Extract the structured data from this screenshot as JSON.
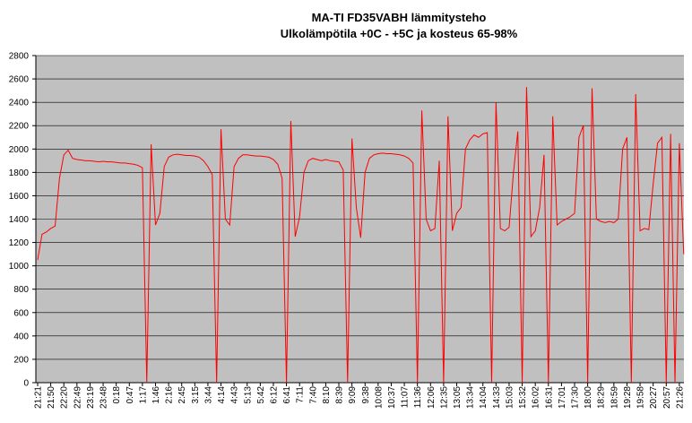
{
  "chart_data": {
    "type": "line",
    "title": "MA-TI FD35VABH lämmitysteho",
    "subtitle": "Ulkolämpötila  +0C - +5C ja kosteus 65-98%",
    "categories": [
      "21:21",
      null,
      null,
      "21:50",
      null,
      null,
      "22:20",
      null,
      null,
      "22:49",
      null,
      null,
      "23:19",
      null,
      null,
      "23:48",
      null,
      null,
      "0:18",
      null,
      null,
      "0:47",
      null,
      null,
      "1:17",
      null,
      null,
      "1:46",
      null,
      null,
      "2:16",
      null,
      null,
      "2:45",
      null,
      null,
      "3:15",
      null,
      null,
      "3:44",
      null,
      null,
      "4:14",
      null,
      null,
      "4:43",
      null,
      null,
      "5:13",
      null,
      null,
      "5:42",
      null,
      null,
      "6:12",
      null,
      null,
      "6:41",
      null,
      null,
      "7:11",
      null,
      null,
      "7:40",
      null,
      null,
      "8:10",
      null,
      null,
      "8:39",
      null,
      null,
      "9:09",
      null,
      null,
      "9:38",
      null,
      null,
      "10:08",
      null,
      null,
      "10:37",
      null,
      null,
      "11:07",
      null,
      null,
      "11:36",
      null,
      null,
      "12:06",
      null,
      null,
      "12:35",
      null,
      null,
      "13:05",
      null,
      null,
      "13:34",
      null,
      null,
      "14:04",
      null,
      null,
      "14:33",
      null,
      null,
      "15:03",
      null,
      null,
      "15:32",
      null,
      null,
      "16:02",
      null,
      null,
      "16:31",
      null,
      null,
      "17:01",
      null,
      null,
      "17:30",
      null,
      null,
      "18:00",
      null,
      null,
      "18:29",
      null,
      null,
      "18:59",
      null,
      null,
      "19:28",
      null,
      null,
      "19:58",
      null,
      null,
      "20:27",
      null,
      null,
      "20:57",
      null,
      null,
      "21:26",
      null
    ],
    "values": [
      1050,
      1270,
      1290,
      1320,
      1340,
      1750,
      1950,
      1990,
      1920,
      1910,
      1905,
      1900,
      1900,
      1895,
      1890,
      1895,
      1890,
      1890,
      1885,
      1880,
      1880,
      1875,
      1870,
      1860,
      1840,
      0,
      2040,
      1350,
      1450,
      1850,
      1930,
      1950,
      1955,
      1950,
      1945,
      1945,
      1940,
      1930,
      1900,
      1850,
      1780,
      0,
      2170,
      1400,
      1350,
      1850,
      1920,
      1950,
      1950,
      1945,
      1940,
      1940,
      1935,
      1930,
      1910,
      1870,
      1750,
      0,
      2240,
      1250,
      1420,
      1800,
      1900,
      1920,
      1910,
      1900,
      1910,
      1900,
      1895,
      1890,
      1820,
      0,
      2090,
      1500,
      1240,
      1800,
      1920,
      1950,
      1960,
      1965,
      1960,
      1960,
      1955,
      1950,
      1940,
      1920,
      1880,
      0,
      2330,
      1400,
      1300,
      1320,
      1900,
      0,
      2280,
      1300,
      1450,
      1500,
      2000,
      2080,
      2120,
      2100,
      2130,
      2140,
      0,
      2400,
      1320,
      1300,
      1330,
      1800,
      2150,
      0,
      2530,
      1250,
      1300,
      1500,
      1950,
      0,
      2280,
      1350,
      1380,
      1400,
      1420,
      1450,
      2100,
      2200,
      0,
      2520,
      1400,
      1380,
      1370,
      1380,
      1370,
      1400,
      2000,
      2100,
      0,
      2470,
      1300,
      1320,
      1310,
      1700,
      2050,
      2100,
      0,
      2130,
      0,
      2050,
      1100
    ],
    "color": "#ff0000",
    "ylim": [
      0,
      2800
    ],
    "yticks": [
      0,
      200,
      400,
      600,
      800,
      1000,
      1200,
      1400,
      1600,
      1800,
      2000,
      2200,
      2400,
      2600,
      2800
    ],
    "grid": true
  }
}
